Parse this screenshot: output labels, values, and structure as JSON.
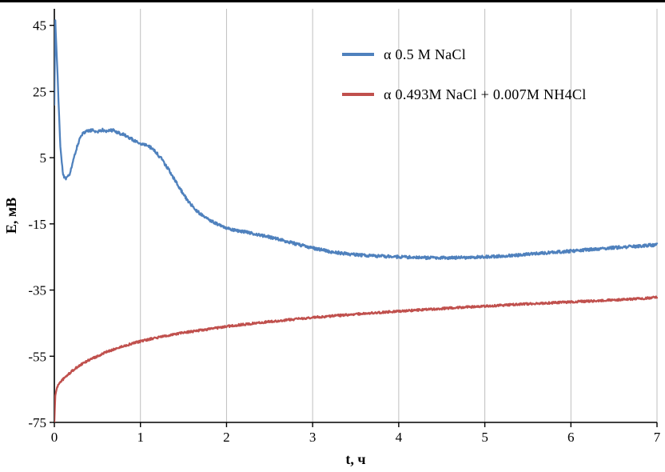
{
  "chart_data": {
    "type": "line",
    "title": "",
    "xlabel": "t, ч",
    "ylabel": "Е, мВ",
    "xlim": [
      0,
      7
    ],
    "ylim": [
      -75,
      50
    ],
    "xticks": [
      0,
      1,
      2,
      3,
      4,
      5,
      6,
      7
    ],
    "yticks": [
      45,
      25,
      5,
      -15,
      -35,
      -55,
      -75
    ],
    "grid": "vertical-only",
    "grid_color": "#bfbfbf",
    "axis_color": "#000000",
    "legend_position": "top-right-inside",
    "series": [
      {
        "name": "α 0.5 M NaCl",
        "color": "#4F81BD",
        "points": [
          [
            0,
            21
          ],
          [
            0.01,
            47
          ],
          [
            0.04,
            28
          ],
          [
            0.07,
            8
          ],
          [
            0.1,
            0
          ],
          [
            0.13,
            -1.5
          ],
          [
            0.17,
            -0.5
          ],
          [
            0.22,
            4
          ],
          [
            0.27,
            9
          ],
          [
            0.32,
            12
          ],
          [
            0.38,
            13
          ],
          [
            0.44,
            13.3
          ],
          [
            0.5,
            12.8
          ],
          [
            0.56,
            13.4
          ],
          [
            0.62,
            13
          ],
          [
            0.68,
            13.4
          ],
          [
            0.74,
            12.6
          ],
          [
            0.8,
            12
          ],
          [
            0.86,
            11.2
          ],
          [
            0.92,
            10.3
          ],
          [
            1.0,
            9.3
          ],
          [
            1.08,
            8.8
          ],
          [
            1.15,
            7.5
          ],
          [
            1.25,
            4.5
          ],
          [
            1.35,
            0.5
          ],
          [
            1.45,
            -4
          ],
          [
            1.55,
            -8
          ],
          [
            1.65,
            -11
          ],
          [
            1.75,
            -13
          ],
          [
            1.85,
            -14.5
          ],
          [
            1.95,
            -15.8
          ],
          [
            2.05,
            -16.6
          ],
          [
            2.2,
            -17.4
          ],
          [
            2.4,
            -18.4
          ],
          [
            2.6,
            -19.6
          ],
          [
            2.8,
            -21
          ],
          [
            3.0,
            -22.3
          ],
          [
            3.2,
            -23.4
          ],
          [
            3.4,
            -24.1
          ],
          [
            3.6,
            -24.5
          ],
          [
            3.8,
            -24.8
          ],
          [
            4.0,
            -25
          ],
          [
            4.25,
            -25.2
          ],
          [
            4.5,
            -25.3
          ],
          [
            4.75,
            -25.2
          ],
          [
            5.0,
            -25
          ],
          [
            5.25,
            -24.7
          ],
          [
            5.5,
            -24.2
          ],
          [
            5.75,
            -23.7
          ],
          [
            6.0,
            -23.2
          ],
          [
            6.25,
            -22.7
          ],
          [
            6.5,
            -22.2
          ],
          [
            6.75,
            -21.8
          ],
          [
            7.0,
            -21.3
          ]
        ]
      },
      {
        "name": "α 0.493M NaCl + 0.007M NH4Cl",
        "color": "#C0504D",
        "points": [
          [
            0,
            -75
          ],
          [
            0.01,
            -67
          ],
          [
            0.03,
            -64.5
          ],
          [
            0.06,
            -63
          ],
          [
            0.1,
            -62
          ],
          [
            0.15,
            -60.8
          ],
          [
            0.2,
            -59.6
          ],
          [
            0.25,
            -58.6
          ],
          [
            0.3,
            -57.7
          ],
          [
            0.4,
            -56.2
          ],
          [
            0.5,
            -55
          ],
          [
            0.6,
            -53.8
          ],
          [
            0.7,
            -52.8
          ],
          [
            0.8,
            -52
          ],
          [
            0.9,
            -51.2
          ],
          [
            1.0,
            -50.5
          ],
          [
            1.15,
            -49.6
          ],
          [
            1.3,
            -48.8
          ],
          [
            1.45,
            -48.1
          ],
          [
            1.6,
            -47.5
          ],
          [
            1.8,
            -46.8
          ],
          [
            2.0,
            -46
          ],
          [
            2.2,
            -45.4
          ],
          [
            2.4,
            -44.8
          ],
          [
            2.6,
            -44.3
          ],
          [
            2.8,
            -43.8
          ],
          [
            3.0,
            -43.3
          ],
          [
            3.25,
            -42.8
          ],
          [
            3.5,
            -42.3
          ],
          [
            3.75,
            -41.8
          ],
          [
            4.0,
            -41.4
          ],
          [
            4.25,
            -41
          ],
          [
            4.5,
            -40.6
          ],
          [
            4.75,
            -40.2
          ],
          [
            5.0,
            -39.9
          ],
          [
            5.25,
            -39.5
          ],
          [
            5.5,
            -39.2
          ],
          [
            5.75,
            -38.9
          ],
          [
            6.0,
            -38.6
          ],
          [
            6.25,
            -38.3
          ],
          [
            6.5,
            -38
          ],
          [
            6.75,
            -37.7
          ],
          [
            7.0,
            -37.2
          ]
        ]
      }
    ]
  }
}
